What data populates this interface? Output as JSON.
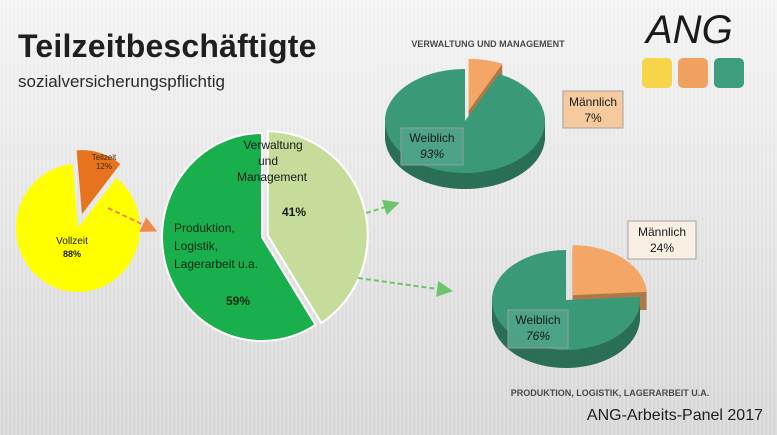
{
  "header": {
    "title": "Teilzeitbeschäftigte",
    "subtitle": "sozialversicherungspflichtig"
  },
  "logo": {
    "text": "ANG",
    "colors": [
      "#f7d44a",
      "#f0a15f",
      "#3e9d7c"
    ]
  },
  "credit": "ANG-Arbeits-Panel 2017",
  "colors": {
    "vollzeit": "#ffff00",
    "teilzeit": "#e8731e",
    "produktion": "#1aaf4d",
    "verwaltung": "#c5dc9a",
    "weiblich": "#3a9a78",
    "maennlich": "#f3a665",
    "arrow": "#f08a4b",
    "arrow_green": "#6cc46c"
  },
  "chart_data": [
    {
      "type": "pie",
      "id": "overall",
      "categories": [
        "Vollzeit",
        "Teilzeit"
      ],
      "values": [
        88,
        12
      ],
      "labels": [
        "88%",
        "12%"
      ]
    },
    {
      "type": "pie",
      "id": "teilzeit_breakdown",
      "categories": [
        "Produktion, Logistik, Lagerarbeit u.a.",
        "Verwaltung und Management"
      ],
      "values": [
        59,
        41
      ],
      "labels": [
        "59%",
        "41%"
      ]
    },
    {
      "type": "pie",
      "id": "verwaltung",
      "title": "VERWALTUNG UND MANAGEMENT",
      "categories": [
        "Weiblich",
        "Männlich"
      ],
      "values": [
        93,
        7
      ],
      "labels": [
        "93%",
        "7%"
      ]
    },
    {
      "type": "pie",
      "id": "produktion",
      "title": "PRODUKTION, LOGISTIK, LAGERARBEIT U.A.",
      "categories": [
        "Weiblich",
        "Männlich"
      ],
      "values": [
        76,
        24
      ],
      "labels": [
        "76%",
        "24%"
      ]
    }
  ]
}
